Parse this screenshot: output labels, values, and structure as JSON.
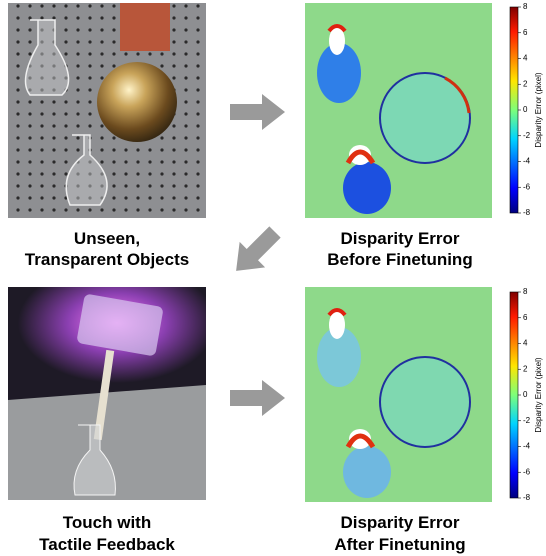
{
  "panels": [
    {
      "caption": [
        "Unseen,",
        "Transparent Objects"
      ]
    },
    {
      "caption": [
        "Disparity Error",
        "Before Finetuning"
      ],
      "colorbar": {
        "label": "Disparity Error (pixel)",
        "ticks": [
          8,
          6,
          4,
          2,
          0,
          -2,
          -4,
          -6,
          -8
        ]
      }
    },
    {
      "caption": [
        "Touch with",
        "Tactile Feedback"
      ]
    },
    {
      "caption": [
        "Disparity Error",
        "After Finetuning"
      ],
      "colorbar": {
        "label": "Disparity Error (pixel)",
        "ticks": [
          8,
          6,
          4,
          2,
          0,
          -2,
          -4,
          -6,
          -8
        ]
      }
    }
  ]
}
